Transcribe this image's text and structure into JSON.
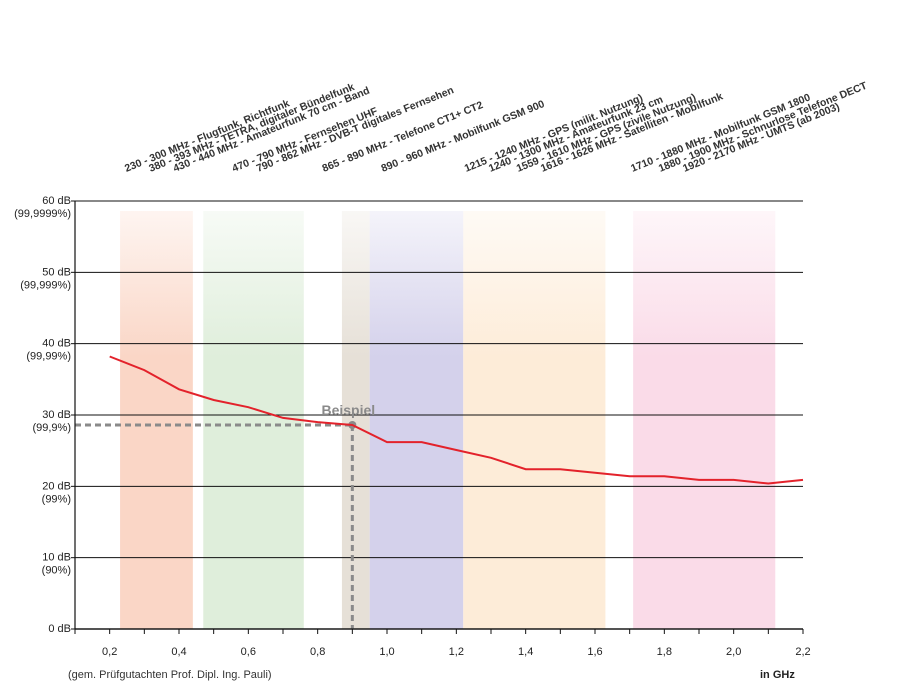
{
  "chart_data": {
    "type": "line",
    "xlabel": "in GHz",
    "footnote": "(gem. Prüfgutachten Prof. Dipl. Ing. Pauli)",
    "xlim": [
      0.1,
      2.2
    ],
    "ylim": [
      0,
      60
    ],
    "x_ticks": [
      {
        "v": 0.2,
        "label": "0,2"
      },
      {
        "v": 0.4,
        "label": "0,4"
      },
      {
        "v": 0.6,
        "label": "0,6"
      },
      {
        "v": 0.8,
        "label": "0,8"
      },
      {
        "v": 1.0,
        "label": "1,0"
      },
      {
        "v": 1.2,
        "label": "1,2"
      },
      {
        "v": 1.4,
        "label": "1,4"
      },
      {
        "v": 1.6,
        "label": "1,6"
      },
      {
        "v": 1.8,
        "label": "1,8"
      },
      {
        "v": 2.0,
        "label": "2,0"
      },
      {
        "v": 2.2,
        "label": "2,2"
      }
    ],
    "y_ticks": [
      {
        "v": 0,
        "label": "0 dB",
        "sub": ""
      },
      {
        "v": 10,
        "label": "10 dB",
        "sub": "(90%)"
      },
      {
        "v": 20,
        "label": "20 dB",
        "sub": "(99%)"
      },
      {
        "v": 30,
        "label": "30 dB",
        "sub": "(99,9%)"
      },
      {
        "v": 40,
        "label": "40 dB",
        "sub": "(99,99%)"
      },
      {
        "v": 50,
        "label": "50 dB",
        "sub": "(99,999%)"
      },
      {
        "v": 60,
        "label": "60 dB",
        "sub": "(99,9999%)"
      }
    ],
    "series": [
      {
        "color": "#e3222b",
        "x": [
          0.2,
          0.3,
          0.4,
          0.5,
          0.6,
          0.7,
          0.8,
          0.9,
          1.0,
          1.1,
          1.2,
          1.3,
          1.4,
          1.5,
          1.6,
          1.7,
          1.8,
          1.9,
          2.0,
          2.1,
          2.2
        ],
        "y": [
          38.2,
          36.3,
          33.6,
          32.1,
          31.1,
          29.6,
          29.0,
          28.6,
          26.2,
          26.2,
          25.1,
          24.0,
          22.4,
          22.4,
          21.9,
          21.4,
          21.4,
          20.9,
          20.9,
          20.4,
          20.9
        ]
      }
    ],
    "bands": [
      {
        "from": 0.23,
        "to": 0.44,
        "color": "#fad6c6"
      },
      {
        "from": 0.47,
        "to": 0.76,
        "color": "#dfeedb"
      },
      {
        "from": 0.87,
        "to": 0.95,
        "color": "#e6e0d7"
      },
      {
        "from": 0.95,
        "to": 1.22,
        "color": "#d4d1eb"
      },
      {
        "from": 1.22,
        "to": 1.63,
        "color": "#fdecd8"
      },
      {
        "from": 1.71,
        "to": 2.12,
        "color": "#fadbe8"
      }
    ],
    "example": {
      "label": "Beispiel",
      "x": 0.9,
      "y": 28.6,
      "color": "#8a8a8a"
    },
    "band_labels": [
      {
        "x": 0.3,
        "text": "230 - 300 MHz - Flugfunk, Richtfunk"
      },
      {
        "x": 0.37,
        "text": "380 - 393 MHz - TETRA, digitaler Bündelfunk"
      },
      {
        "x": 0.44,
        "text": "430 - 440 MHz - Amateurfunk 70 cm - Band"
      },
      {
        "x": 0.61,
        "text": "470 - 790 MHz - Fernsehen UHF"
      },
      {
        "x": 0.68,
        "text": "790 - 862 MHz - DVB-T digitales Fernsehen"
      },
      {
        "x": 0.87,
        "text": "865 - 890 MHz - Telefone CT1+ CT2"
      },
      {
        "x": 1.04,
        "text": "890 - 960 MHz -  Mobilfunk GSM 900"
      },
      {
        "x": 1.28,
        "text": "1215 - 1240 MHz - GPS (milit. Nutzung)"
      },
      {
        "x": 1.35,
        "text": "1240 - 1300 MHz - Amateurfunk 23 cm"
      },
      {
        "x": 1.43,
        "text": "1559 - 1610 MHz - GPS (zivile Nutzung)"
      },
      {
        "x": 1.5,
        "text": "1616 - 1626 MHz - Satelliten - Mobilfunk"
      },
      {
        "x": 1.76,
        "text": "1710 - 1880 MHz - Mobilfunk GSM 1800"
      },
      {
        "x": 1.84,
        "text": "1880 - 1900 MHz - Schnurlose Telefone DECT"
      },
      {
        "x": 1.91,
        "text": "1920 - 2170 MHz - UMTS (ab 2003)"
      }
    ]
  }
}
